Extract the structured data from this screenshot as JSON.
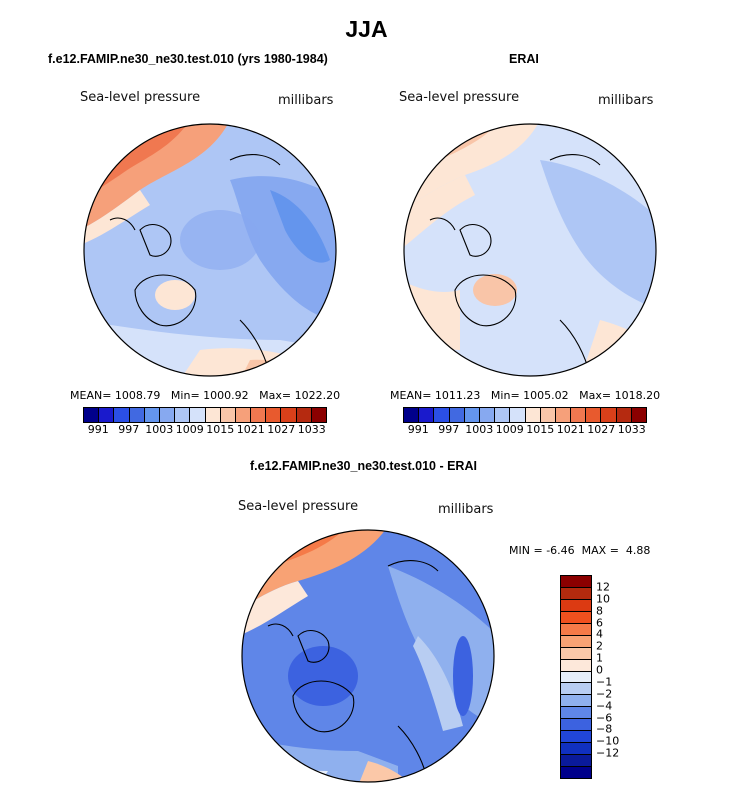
{
  "main_title": "JJA",
  "panels": [
    {
      "title": "f.e12.FAMIP.ne30_ne30.test.010 (yrs 1980-1984)",
      "variable": "Sea-level pressure",
      "units": "millibars",
      "stats": {
        "mean_label": "MEAN=",
        "mean": "1008.79",
        "min_label": "Min=",
        "min": "1000.92",
        "max_label": "Max=",
        "max": "1022.20"
      }
    },
    {
      "title": "ERAI",
      "variable": "Sea-level pressure",
      "units": "millibars",
      "stats": {
        "mean_label": "MEAN=",
        "mean": "1011.23",
        "min_label": "Min=",
        "min": "1005.02",
        "max_label": "Max=",
        "max": "1018.20"
      }
    },
    {
      "title": "f.e12.FAMIP.ne30_ne30.test.010 - ERAI",
      "variable": "Sea-level pressure",
      "units": "millibars",
      "stats": {
        "min_label": "MIN =",
        "min": "-6.46",
        "max_label": "MAX =",
        "max": "4.88"
      }
    }
  ],
  "colorbar_abs": {
    "colors": [
      "#00008b",
      "#1a1acc",
      "#2b4fe6",
      "#4169e1",
      "#6495ed",
      "#87a9f0",
      "#aec6f5",
      "#d5e2fa",
      "#fde6d5",
      "#f9c5a8",
      "#f6a07a",
      "#f07850",
      "#e85a2e",
      "#d9401a",
      "#b52a10",
      "#8b0000"
    ],
    "labels": [
      "991",
      "997",
      "1003",
      "1009",
      "1015",
      "1021",
      "1027",
      "1033"
    ]
  },
  "colorbar_diff": {
    "colors": [
      "#8b0000",
      "#b22a0e",
      "#dc3a12",
      "#f0501e",
      "#f57a48",
      "#f8a274",
      "#fbc8a8",
      "#fde8da",
      "#e6eefa",
      "#b8cdf2",
      "#8fb0ee",
      "#5f86e8",
      "#3c62e0",
      "#2146d8",
      "#1030c0",
      "#0a1a9a",
      "#00008b"
    ],
    "labels": [
      "12",
      "10",
      "8",
      "6",
      "4",
      "2",
      "1",
      "0",
      "−1",
      "−2",
      "−4",
      "−6",
      "−8",
      "−10",
      "−12"
    ]
  },
  "chart_data": [
    {
      "type": "heatmap",
      "title": "f.e12.FAMIP.ne30_ne30.test.010 (yrs 1980-1984)",
      "variable": "Sea-level pressure",
      "units": "millibars",
      "season": "JJA",
      "projection": "north polar stereographic",
      "mean": 1008.79,
      "min": 1000.92,
      "max": 1022.2,
      "levels": [
        991,
        997,
        1003,
        1009,
        1015,
        1021,
        1027,
        1033
      ]
    },
    {
      "type": "heatmap",
      "title": "ERAI",
      "variable": "Sea-level pressure",
      "units": "millibars",
      "season": "JJA",
      "projection": "north polar stereographic",
      "mean": 1011.23,
      "min": 1005.02,
      "max": 1018.2,
      "levels": [
        991,
        997,
        1003,
        1009,
        1015,
        1021,
        1027,
        1033
      ]
    },
    {
      "type": "heatmap",
      "title": "f.e12.FAMIP.ne30_ne30.test.010 - ERAI",
      "variable": "Sea-level pressure",
      "units": "millibars",
      "season": "JJA",
      "projection": "north polar stereographic",
      "min": -6.46,
      "max": 4.88,
      "levels": [
        12,
        10,
        8,
        6,
        4,
        2,
        1,
        0,
        -1,
        -2,
        -4,
        -6,
        -8,
        -10,
        -12
      ]
    }
  ]
}
